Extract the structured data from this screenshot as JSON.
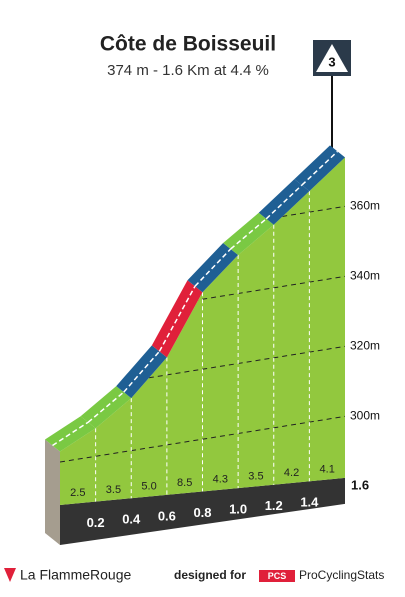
{
  "chart_data": {
    "type": "climb-profile",
    "title": "Côte de Boisseuil",
    "subtitle": "374 m - 1.6 Km at 4.4 %",
    "category": "3",
    "x": [
      0,
      0.2,
      0.4,
      0.6,
      0.8,
      1.0,
      1.2,
      1.4,
      1.6
    ],
    "elevation": [
      303,
      308,
      315,
      325,
      342,
      351,
      358,
      366,
      374
    ],
    "xlim": [
      0,
      1.6
    ],
    "xticks": [
      0.2,
      0.4,
      0.6,
      0.8,
      {
        "value": 1,
        "label": "1.0"
      },
      1.2,
      1.4,
      1.6
    ],
    "ylim": [
      300,
      374
    ],
    "yticks": [
      {
        "value": 300,
        "label": "300m"
      },
      {
        "value": 320,
        "label": "320m"
      },
      {
        "value": 340,
        "label": "340m"
      },
      {
        "value": 360,
        "label": "360m"
      }
    ],
    "segments": {
      "values": [
        2.5,
        3.5,
        5,
        8.5,
        4.3,
        3.5,
        4.2,
        4.1
      ],
      "value_labels": [
        "2.5",
        "3.5",
        "5.0",
        "8.5",
        "4.3",
        "3.5",
        "4.2",
        "4.1"
      ],
      "colors": [
        "#7ac943",
        "#7ac943",
        "#1f5f94",
        "#e0203a",
        "#1f5f94",
        "#7ac943",
        "#1f5f94",
        "#1f5f94"
      ]
    },
    "face_color": "#92c83e",
    "grid": true
  },
  "footer": {
    "brand": "La FlammeRouge",
    "designed_for": "designed for",
    "pcs": "PCS",
    "site": "ProCyclingStats"
  }
}
